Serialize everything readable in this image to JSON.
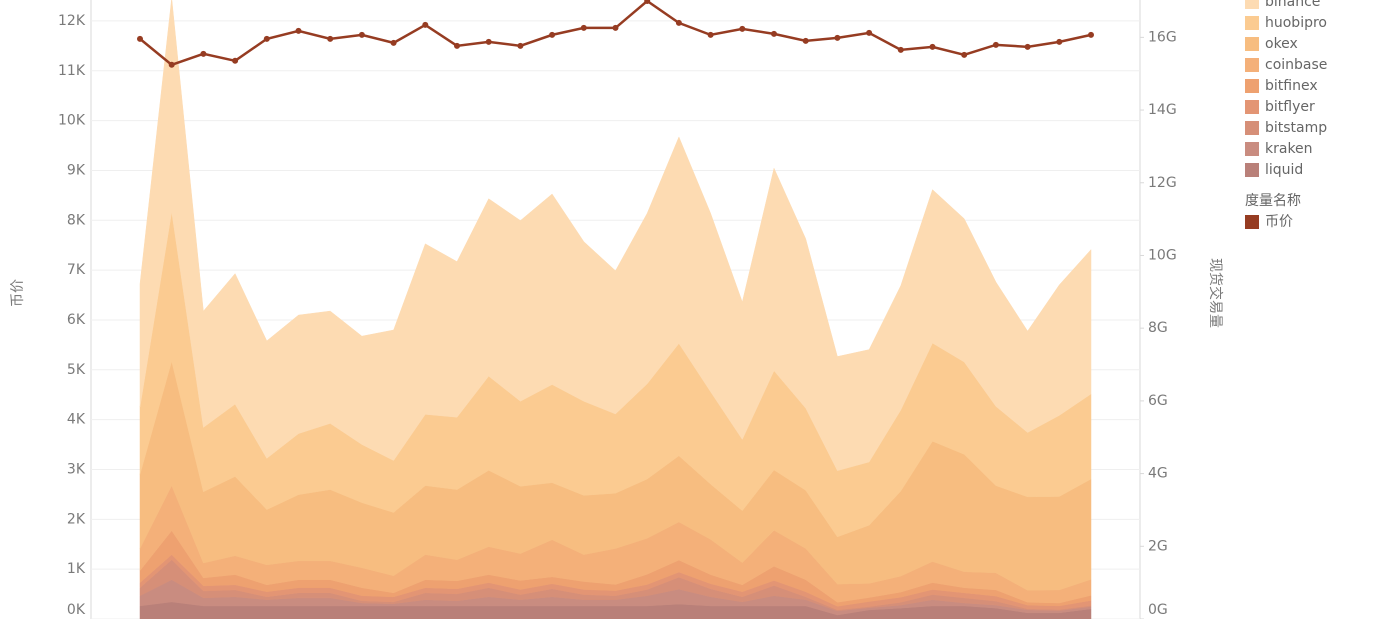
{
  "chart_data": {
    "type": "area",
    "stacked": true,
    "grid": true,
    "y_label": "币价",
    "y2_label": "现货交易量",
    "legend_title": "度量名称",
    "ylim": [
      0,
      12400
    ],
    "yticks": [
      {
        "value": 0,
        "label": "0K"
      },
      {
        "value": 1000,
        "label": "1K"
      },
      {
        "value": 2000,
        "label": "2K"
      },
      {
        "value": 3000,
        "label": "3K"
      },
      {
        "value": 4000,
        "label": "4K"
      },
      {
        "value": 5000,
        "label": "5K"
      },
      {
        "value": 6000,
        "label": "6K"
      },
      {
        "value": 7000,
        "label": "7K"
      },
      {
        "value": 8000,
        "label": "8K"
      },
      {
        "value": 9000,
        "label": "9K"
      },
      {
        "value": 10000,
        "label": "10K"
      },
      {
        "value": 11000,
        "label": "11K"
      },
      {
        "value": 12000,
        "label": "12K"
      }
    ],
    "y2lim": [
      0,
      17
    ],
    "y2ticks": [
      {
        "value": 0,
        "label": "0G"
      },
      {
        "value": 2,
        "label": "2G"
      },
      {
        "value": 4,
        "label": "4G"
      },
      {
        "value": 6,
        "label": "6G"
      },
      {
        "value": 8,
        "label": "8G"
      },
      {
        "value": 10,
        "label": "10G"
      },
      {
        "value": 12,
        "label": "12G"
      },
      {
        "value": 14,
        "label": "14G"
      },
      {
        "value": 16,
        "label": "16G"
      }
    ],
    "categories": [
      null,
      null,
      null,
      null,
      null,
      null,
      null,
      null,
      null,
      null,
      null,
      null,
      null,
      null,
      null,
      null,
      null,
      null,
      null,
      null,
      null,
      null,
      null,
      null,
      null,
      null,
      null,
      null,
      null,
      null,
      null
    ],
    "series": [
      {
        "name": "binance",
        "color": "#fddbb2",
        "axis": "y2",
        "values": [
          3.39,
          5.88,
          3.2,
          3.59,
          3.23,
          3.26,
          3.09,
          2.98,
          3.59,
          4.69,
          4.28,
          4.88,
          4.97,
          5.24,
          4.39,
          3.94,
          4.69,
          5.68,
          4.91,
          3.78,
          5.57,
          4.66,
          3.14,
          3.09,
          3.42,
          4.22,
          3.94,
          3.42,
          2.79,
          3.59,
          3.97
        ]
      },
      {
        "name": "huobipro",
        "color": "#fbcb91",
        "axis": "y2",
        "values": [
          1.85,
          4.11,
          1.77,
          1.99,
          1.41,
          1.68,
          1.82,
          1.6,
          1.43,
          1.96,
          1.99,
          2.59,
          2.34,
          2.7,
          2.59,
          2.18,
          2.62,
          3.09,
          2.54,
          1.96,
          2.73,
          2.26,
          1.82,
          1.74,
          2.23,
          2.7,
          2.54,
          2.18,
          1.77,
          2.23,
          2.34
        ]
      },
      {
        "name": "okex",
        "color": "#f7bd80",
        "axis": "y2",
        "values": [
          2.04,
          3.42,
          1.96,
          2.18,
          1.52,
          1.82,
          1.96,
          1.79,
          1.74,
          1.9,
          1.93,
          2.1,
          1.85,
          1.57,
          1.63,
          1.52,
          1.63,
          1.82,
          1.52,
          1.43,
          1.66,
          1.6,
          1.3,
          1.6,
          2.34,
          3.31,
          3.23,
          2.4,
          2.57,
          2.57,
          2.76
        ]
      },
      {
        "name": "coinbase",
        "color": "#f4b079",
        "axis": "y2",
        "values": [
          0.61,
          1.24,
          0.41,
          0.52,
          0.55,
          0.52,
          0.52,
          0.55,
          0.47,
          0.69,
          0.58,
          0.77,
          0.74,
          1.02,
          0.74,
          0.99,
          0.99,
          1.05,
          0.97,
          0.61,
          0.99,
          0.86,
          0.5,
          0.39,
          0.44,
          0.58,
          0.44,
          0.47,
          0.33,
          0.36,
          0.44
        ]
      },
      {
        "name": "bitfinex",
        "color": "#eea170",
        "axis": "y2",
        "values": [
          0.33,
          0.66,
          0.22,
          0.28,
          0.19,
          0.22,
          0.22,
          0.22,
          0.11,
          0.22,
          0.22,
          0.22,
          0.25,
          0.19,
          0.22,
          0.17,
          0.28,
          0.33,
          0.25,
          0.19,
          0.39,
          0.33,
          0.11,
          0.11,
          0.14,
          0.19,
          0.14,
          0.17,
          0.08,
          0.08,
          0.14
        ]
      },
      {
        "name": "bitflyer",
        "color": "#e39574",
        "axis": "y2",
        "values": [
          0.14,
          0.14,
          0.14,
          0.14,
          0.14,
          0.14,
          0.14,
          0.14,
          0.14,
          0.14,
          0.14,
          0.14,
          0.14,
          0.14,
          0.14,
          0.14,
          0.14,
          0.14,
          0.14,
          0.14,
          0.14,
          0.14,
          0.1,
          0.14,
          0.14,
          0.14,
          0.14,
          0.14,
          0.1,
          0.1,
          0.14
        ]
      },
      {
        "name": "bitstamp",
        "color": "#d68f78",
        "axis": "y2",
        "values": [
          0.22,
          0.55,
          0.19,
          0.19,
          0.08,
          0.14,
          0.14,
          0.06,
          0.05,
          0.19,
          0.19,
          0.25,
          0.14,
          0.22,
          0.14,
          0.11,
          0.17,
          0.33,
          0.22,
          0.14,
          0.28,
          0.08,
          0.03,
          0.03,
          0.08,
          0.14,
          0.14,
          0.11,
          0.03,
          0.03,
          0.03
        ]
      },
      {
        "name": "kraken",
        "color": "#c98c80",
        "axis": "y2",
        "values": [
          0.28,
          0.61,
          0.22,
          0.25,
          0.17,
          0.22,
          0.22,
          0.08,
          0.06,
          0.17,
          0.14,
          0.25,
          0.17,
          0.25,
          0.17,
          0.17,
          0.28,
          0.41,
          0.25,
          0.11,
          0.28,
          0.17,
          0.11,
          0.06,
          0.08,
          0.17,
          0.08,
          0.08,
          0.08,
          0.06,
          0.06
        ]
      },
      {
        "name": "liquid",
        "color": "#b98079",
        "axis": "y2",
        "values": [
          0.36,
          0.47,
          0.36,
          0.36,
          0.36,
          0.36,
          0.36,
          0.36,
          0.36,
          0.36,
          0.36,
          0.36,
          0.36,
          0.36,
          0.36,
          0.36,
          0.36,
          0.41,
          0.36,
          0.36,
          0.36,
          0.36,
          0.11,
          0.25,
          0.3,
          0.36,
          0.36,
          0.3,
          0.17,
          0.17,
          0.28
        ]
      },
      {
        "name": "币价",
        "color": "#963c22",
        "axis": "y",
        "type": "line",
        "values": [
          11640,
          11120,
          11340,
          11200,
          11640,
          11800,
          11640,
          11720,
          11560,
          11920,
          11500,
          11580,
          11500,
          11720,
          11860,
          11860,
          12400,
          11960,
          11720,
          11840,
          11740,
          11600,
          11660,
          11760,
          11420,
          11480,
          11320,
          11520,
          11480,
          11580,
          11720
        ]
      }
    ]
  }
}
